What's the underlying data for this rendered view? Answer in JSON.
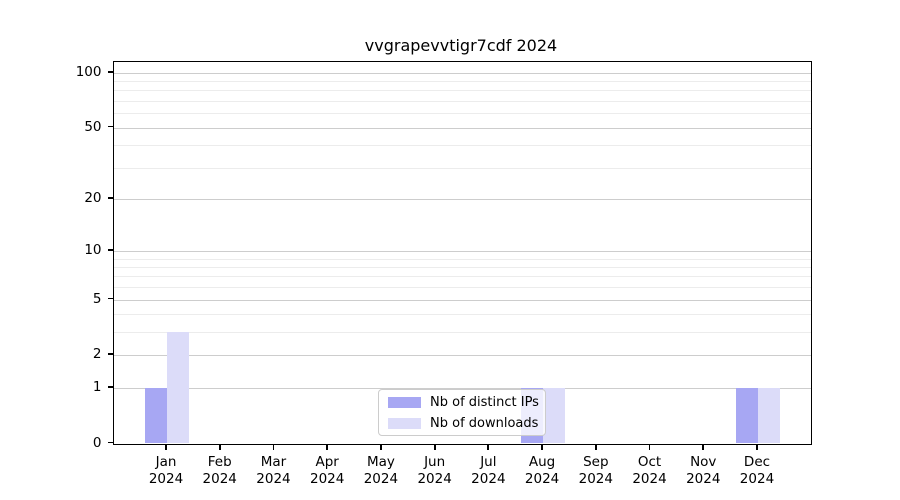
{
  "chart_data": {
    "type": "bar",
    "title": "vvgrapevvtigr7cdf 2024",
    "categories": [
      "Jan",
      "Feb",
      "Mar",
      "Apr",
      "May",
      "Jun",
      "Jul",
      "Aug",
      "Sep",
      "Oct",
      "Nov",
      "Dec"
    ],
    "category_year": "2024",
    "series": [
      {
        "name": "Nb of distinct IPs",
        "color": "#a7a7f3",
        "values": [
          1,
          0,
          0,
          0,
          0,
          0,
          0,
          1,
          0,
          0,
          0,
          1
        ]
      },
      {
        "name": "Nb of downloads",
        "color": "#dcdcf9",
        "values": [
          3,
          0,
          0,
          0,
          0,
          0,
          0,
          1,
          0,
          0,
          0,
          1
        ]
      }
    ],
    "xlabel": "",
    "ylabel": "",
    "y_scale": "log10(1+v)",
    "ylim": [
      0,
      115
    ],
    "y_ticks": [
      100,
      50,
      20,
      10,
      5,
      2,
      1,
      0
    ],
    "y_minor_ticks": [
      3,
      4,
      6,
      7,
      8,
      9,
      30,
      40,
      60,
      70,
      80,
      90
    ],
    "grid": true,
    "legend_position": "lower center",
    "colors": {
      "major_grid": "#cdcdcd",
      "minor_grid": "#ececec",
      "axis": "#000000",
      "text": "#000000",
      "legend_border": "#cccccc"
    }
  }
}
